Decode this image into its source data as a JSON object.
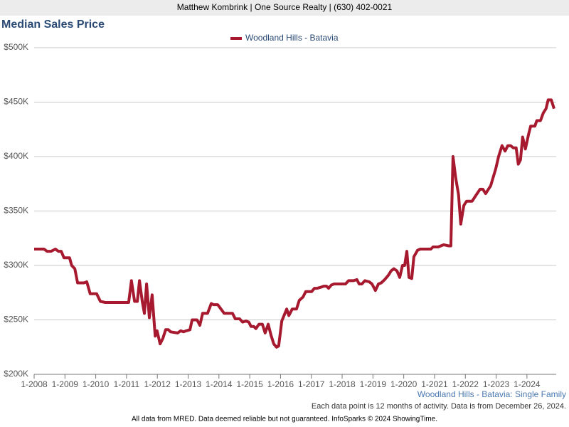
{
  "header": "Matthew Kombrink | One Source Realty | (630) 402-0021",
  "chart_data": {
    "type": "line",
    "title": "Median Sales Price",
    "x": [
      2008.0,
      2008.32,
      2008.42,
      2008.55,
      2008.69,
      2008.79,
      2008.88,
      2008.97,
      2009.15,
      2009.22,
      2009.32,
      2009.41,
      2009.62,
      2009.71,
      2009.82,
      2010.03,
      2010.15,
      2010.31,
      2010.54,
      2011.07,
      2011.16,
      2011.26,
      2011.35,
      2011.42,
      2011.51,
      2011.58,
      2011.65,
      2011.74,
      2011.83,
      2011.93,
      2011.99,
      2012.09,
      2012.18,
      2012.27,
      2012.36,
      2012.43,
      2012.66,
      2012.76,
      2012.85,
      2012.94,
      2013.06,
      2013.13,
      2013.29,
      2013.38,
      2013.47,
      2013.63,
      2013.75,
      2013.82,
      2013.96,
      2014.17,
      2014.44,
      2014.53,
      2014.67,
      2014.77,
      2014.88,
      2014.97,
      2015.04,
      2015.13,
      2015.2,
      2015.3,
      2015.41,
      2015.5,
      2015.6,
      2015.69,
      2015.78,
      2015.87,
      2015.94,
      2016.04,
      2016.2,
      2016.27,
      2016.38,
      2016.52,
      2016.61,
      2016.73,
      2016.82,
      2017.01,
      2017.1,
      2017.19,
      2017.31,
      2017.4,
      2017.49,
      2017.56,
      2017.65,
      2017.74,
      2018.11,
      2018.21,
      2018.37,
      2018.48,
      2018.55,
      2018.64,
      2018.74,
      2018.88,
      2018.97,
      2019.08,
      2019.18,
      2019.27,
      2019.38,
      2019.5,
      2019.59,
      2019.68,
      2019.78,
      2019.87,
      2019.96,
      2020.03,
      2020.1,
      2020.17,
      2020.26,
      2020.33,
      2020.45,
      2020.54,
      2020.88,
      2020.95,
      2021.12,
      2021.3,
      2021.46,
      2021.53,
      2021.6,
      2021.69,
      2021.78,
      2021.85,
      2021.95,
      2022.04,
      2022.22,
      2022.36,
      2022.48,
      2022.57,
      2022.66,
      2022.75,
      2022.82,
      2022.99,
      2023.08,
      2023.19,
      2023.29,
      2023.38,
      2023.47,
      2023.56,
      2023.65,
      2023.72,
      2023.79,
      2023.86,
      2023.95,
      2024.05,
      2024.12,
      2024.26,
      2024.32,
      2024.44,
      2024.53,
      2024.62,
      2024.69,
      2024.79,
      2024.88
    ],
    "series": [
      {
        "name": "Woodland Hills - Batavia",
        "color": "#a6192e",
        "values": [
          315,
          315,
          313,
          313,
          315,
          313,
          313,
          307,
          307,
          300,
          297,
          284,
          284,
          285,
          274,
          274,
          267,
          266,
          266,
          266,
          286,
          267,
          267,
          286,
          267,
          256,
          283,
          252,
          273,
          235,
          240,
          228,
          233,
          241,
          241,
          239,
          238,
          240,
          239,
          240,
          241,
          250,
          250,
          245,
          256,
          256,
          265,
          264,
          264,
          256,
          256,
          251,
          251,
          248,
          249,
          248,
          244,
          244,
          242,
          246,
          246,
          238,
          246,
          236,
          228,
          225,
          226,
          249,
          260,
          254,
          260,
          260,
          268,
          271,
          276,
          276,
          279,
          279,
          280,
          281,
          281,
          279,
          282,
          283,
          283,
          286,
          286,
          287,
          283,
          283,
          286,
          285,
          283,
          277,
          283,
          284,
          287,
          291,
          295,
          297,
          295,
          289,
          300,
          300,
          313,
          289,
          288,
          308,
          314,
          315,
          315,
          317,
          317,
          319,
          318,
          318,
          400,
          380,
          365,
          338,
          355,
          359,
          359,
          365,
          370,
          370,
          366,
          370,
          373,
          389,
          400,
          410,
          405,
          410,
          410,
          408,
          408,
          393,
          397,
          418,
          407,
          420,
          428,
          428,
          433,
          433,
          440,
          444,
          452,
          452,
          444
        ]
      }
    ],
    "xlim": [
      2008,
      2024.95
    ],
    "xticks": [
      {
        "value": 2008,
        "label": "1-2008"
      },
      {
        "value": 2009,
        "label": "1-2009"
      },
      {
        "value": 2010,
        "label": "1-2010"
      },
      {
        "value": 2011,
        "label": "1-2011"
      },
      {
        "value": 2012,
        "label": "1-2012"
      },
      {
        "value": 2013,
        "label": "1-2013"
      },
      {
        "value": 2014,
        "label": "1-2014"
      },
      {
        "value": 2015,
        "label": "1-2015"
      },
      {
        "value": 2016,
        "label": "1-2016"
      },
      {
        "value": 2017,
        "label": "1-2017"
      },
      {
        "value": 2018,
        "label": "1-2018"
      },
      {
        "value": 2019,
        "label": "1-2019"
      },
      {
        "value": 2020,
        "label": "1-2020"
      },
      {
        "value": 2021,
        "label": "1-2021"
      },
      {
        "value": 2022,
        "label": "1-2022"
      },
      {
        "value": 2023,
        "label": "1-2023"
      },
      {
        "value": 2024,
        "label": "1-2024"
      }
    ],
    "ylim": [
      200,
      500
    ],
    "yticks": [
      {
        "value": 200,
        "label": "$200K"
      },
      {
        "value": 250,
        "label": "$250K"
      },
      {
        "value": 300,
        "label": "$300K"
      },
      {
        "value": 350,
        "label": "$350K"
      },
      {
        "value": 400,
        "label": "$400K"
      },
      {
        "value": 450,
        "label": "$450K"
      },
      {
        "value": 500,
        "label": "$500K"
      }
    ],
    "grid": true,
    "legend": "top"
  },
  "footer": {
    "subject": "Woodland Hills - Batavia: Single Family",
    "note": "Each data point is 12 months of activity. Data is from December 26, 2024.",
    "credit": "All data from MRED. Data deemed reliable but not guaranteed. InfoSparks © 2024 ShowingTime."
  }
}
